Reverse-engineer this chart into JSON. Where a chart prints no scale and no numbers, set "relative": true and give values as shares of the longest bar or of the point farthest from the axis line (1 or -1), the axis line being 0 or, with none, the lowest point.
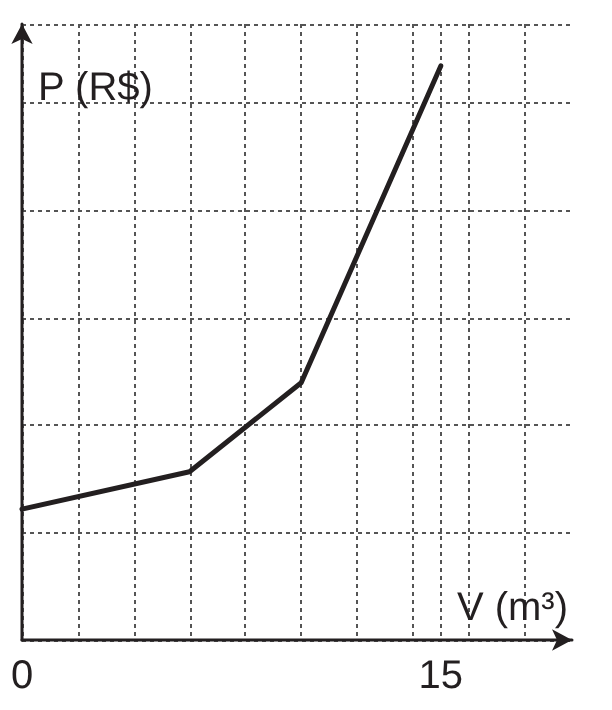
{
  "chart_data": {
    "type": "line",
    "xlabel": "V (m³)",
    "ylabel": "P (R$)",
    "relative": true,
    "x": [
      0,
      6,
      10,
      15
    ],
    "series": [
      {
        "color": "#231f20",
        "values": [
          0.228,
          0.293,
          0.448,
          1
        ]
      }
    ],
    "xlim": [
      0,
      19.7
    ],
    "xticks": [
      0,
      {
        "value": 2,
        "label": null
      },
      {
        "value": 4,
        "label": null
      },
      {
        "value": 6,
        "label": null
      },
      {
        "value": 8,
        "label": null
      },
      {
        "value": 10,
        "label": null
      },
      {
        "value": 12,
        "label": null
      },
      {
        "value": 14,
        "label": null
      },
      15,
      {
        "value": 16,
        "label": null
      },
      {
        "value": 18,
        "label": null
      }
    ],
    "grid": true,
    "marker": "none",
    "line_style": "solid"
  }
}
